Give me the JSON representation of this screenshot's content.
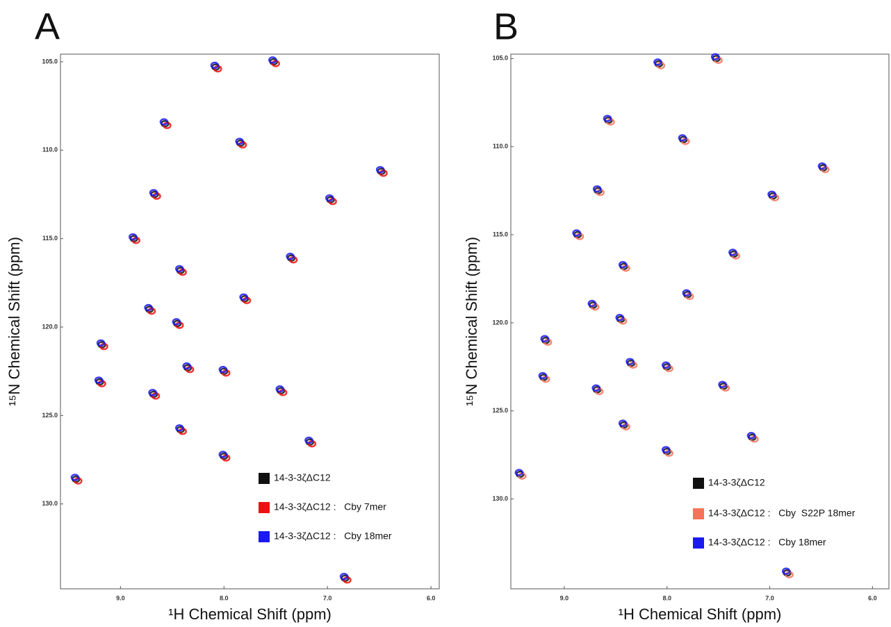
{
  "chart_data": [
    {
      "type": "scatter",
      "panel": "A",
      "xlabel": "¹H Chemical Shift (ppm)",
      "ylabel": "¹⁵N Chemical Shift (ppm)",
      "xlim": [
        9.58,
        5.92
      ],
      "ylim": [
        104.57,
        134.8
      ],
      "xticks": [
        {
          "value": 9,
          "label": "9.0"
        },
        {
          "value": 8,
          "label": "8.0"
        },
        {
          "value": 7,
          "label": "7.0"
        },
        {
          "value": 6,
          "label": "6.0"
        }
      ],
      "yticks": [
        {
          "value": 105,
          "label": "105.0"
        },
        {
          "value": 110,
          "label": "110.0"
        },
        {
          "value": 115,
          "label": "115.0"
        },
        {
          "value": 120,
          "label": "120.0"
        },
        {
          "value": 125,
          "label": "125.0"
        },
        {
          "value": 130,
          "label": "130.0"
        }
      ],
      "series": [
        {
          "name": "14-3-3ζΔC12",
          "color": "#111111",
          "x": [
            8.57,
            8.08,
            7.52,
            7.84,
            6.48,
            8.67,
            8.87,
            7.35,
            8.42,
            8.72,
            7.8,
            8.45,
            9.18,
            8.35,
            8.0,
            9.2,
            8.68,
            7.45,
            8.42,
            7.17,
            8.0,
            9.43,
            6.83,
            6.97
          ],
          "values": [
            108.5,
            105.3,
            105.0,
            109.6,
            111.2,
            112.5,
            115.0,
            116.1,
            116.8,
            119.0,
            118.4,
            119.8,
            121.0,
            122.3,
            122.5,
            123.1,
            123.8,
            123.6,
            125.8,
            126.5,
            127.3,
            128.6,
            134.2,
            112.8
          ]
        },
        {
          "name": "14-3-3ζΔC12 :   Cby 7mer",
          "color": "#ee1111",
          "x": [
            8.55,
            8.06,
            7.5,
            7.82,
            6.46,
            8.65,
            8.85,
            7.33,
            8.4,
            8.7,
            7.78,
            8.43,
            9.16,
            8.33,
            7.98,
            9.18,
            8.66,
            7.43,
            8.4,
            7.15,
            7.98,
            9.41,
            6.81,
            6.95
          ],
          "values": [
            108.6,
            105.4,
            105.1,
            109.7,
            111.3,
            112.6,
            115.1,
            116.2,
            116.9,
            119.1,
            118.5,
            119.9,
            121.1,
            122.4,
            122.6,
            123.2,
            123.9,
            123.7,
            125.9,
            126.6,
            127.4,
            128.7,
            134.3,
            112.9
          ]
        },
        {
          "name": "14-3-3ζΔC12 :   Cby 18mer",
          "color": "#1a1aee",
          "x": [
            8.58,
            8.09,
            7.53,
            7.85,
            6.49,
            8.68,
            8.88,
            7.36,
            8.43,
            8.73,
            7.81,
            8.46,
            9.19,
            8.36,
            8.01,
            9.21,
            8.69,
            7.46,
            8.43,
            7.18,
            8.01,
            9.44,
            6.84,
            6.98
          ],
          "values": [
            108.4,
            105.2,
            104.9,
            109.5,
            111.1,
            112.4,
            114.9,
            116.0,
            116.7,
            118.9,
            118.3,
            119.7,
            120.9,
            122.2,
            122.4,
            123.0,
            123.7,
            123.5,
            125.7,
            126.4,
            127.2,
            128.5,
            134.1,
            112.7
          ]
        }
      ]
    },
    {
      "type": "scatter",
      "panel": "B",
      "xlabel": "¹H Chemical Shift (ppm)",
      "ylabel": "¹⁵N Chemical Shift (ppm)",
      "xlim": [
        9.52,
        5.84
      ],
      "ylim": [
        104.75,
        135.1
      ],
      "xticks": [
        {
          "value": 9,
          "label": "9.0"
        },
        {
          "value": 8,
          "label": "8.0"
        },
        {
          "value": 7,
          "label": "7.0"
        },
        {
          "value": 6,
          "label": "6.0"
        }
      ],
      "yticks": [
        {
          "value": 105,
          "label": "105.0"
        },
        {
          "value": 110,
          "label": "110.0"
        },
        {
          "value": 115,
          "label": "115.0"
        },
        {
          "value": 120,
          "label": "120.0"
        },
        {
          "value": 125,
          "label": "125.0"
        },
        {
          "value": 130,
          "label": "130.0"
        }
      ],
      "series": [
        {
          "name": "14-3-3ζΔC12",
          "color": "#111111",
          "x": [
            8.57,
            8.08,
            7.52,
            7.84,
            6.48,
            8.67,
            8.87,
            7.35,
            8.42,
            8.72,
            7.8,
            8.45,
            9.18,
            8.35,
            8.0,
            9.2,
            8.68,
            7.45,
            8.42,
            7.17,
            8.0,
            9.43,
            6.83,
            6.97
          ],
          "values": [
            108.5,
            105.3,
            105.0,
            109.6,
            111.2,
            112.5,
            115.0,
            116.1,
            116.8,
            119.0,
            118.4,
            119.8,
            121.0,
            122.3,
            122.5,
            123.1,
            123.8,
            123.6,
            125.8,
            126.5,
            127.3,
            128.6,
            134.2,
            112.8
          ]
        },
        {
          "name": "14-3-3ζΔC12 :   Cby  S22P 18mer",
          "color": "#f4735a",
          "x": [
            8.55,
            8.06,
            7.5,
            7.82,
            6.46,
            8.65,
            8.85,
            7.33,
            8.4,
            8.7,
            7.78,
            8.43,
            9.16,
            8.33,
            7.98,
            9.18,
            8.66,
            7.43,
            8.4,
            7.15,
            7.98,
            9.41,
            6.81,
            6.95
          ],
          "values": [
            108.6,
            105.4,
            105.1,
            109.7,
            111.3,
            112.6,
            115.1,
            116.2,
            116.9,
            119.1,
            118.5,
            119.9,
            121.1,
            122.4,
            122.6,
            123.2,
            123.9,
            123.7,
            125.9,
            126.6,
            127.4,
            128.7,
            134.3,
            112.9
          ]
        },
        {
          "name": "14-3-3ζΔC12 :   Cby 18mer",
          "color": "#1a1aee",
          "x": [
            8.58,
            8.09,
            7.53,
            7.85,
            6.49,
            8.68,
            8.88,
            7.36,
            8.43,
            8.73,
            7.81,
            8.46,
            9.19,
            8.36,
            8.01,
            9.21,
            8.69,
            7.46,
            8.43,
            7.18,
            8.01,
            9.44,
            6.84,
            6.98
          ],
          "values": [
            108.4,
            105.2,
            104.9,
            109.5,
            111.1,
            112.4,
            114.9,
            116.0,
            116.7,
            118.9,
            118.3,
            119.7,
            120.9,
            122.2,
            122.4,
            123.0,
            123.7,
            123.5,
            125.7,
            126.4,
            127.2,
            128.5,
            134.1,
            112.7
          ]
        }
      ]
    }
  ]
}
